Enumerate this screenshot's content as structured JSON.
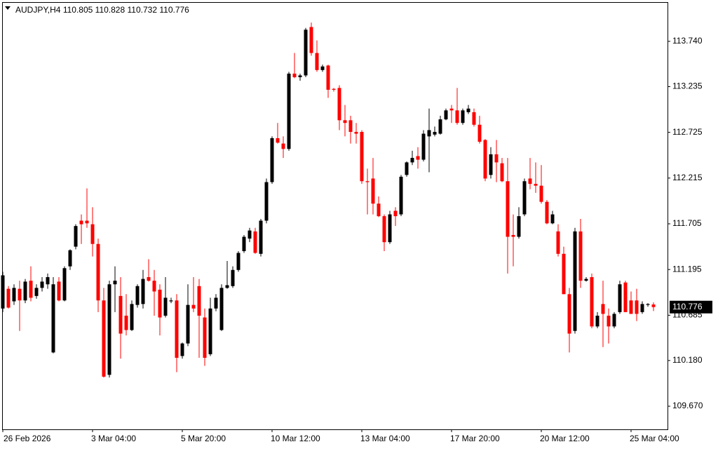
{
  "chart_data": {
    "type": "candlestick",
    "title": "AUDJPY,H4",
    "categories": [
      "26 Feb 2026",
      null,
      null,
      null,
      null,
      null,
      null,
      null,
      null,
      null,
      null,
      null,
      null,
      null,
      null,
      null,
      "3 Mar 04:00",
      null,
      null,
      null,
      null,
      null,
      null,
      null,
      null,
      null,
      null,
      null,
      null,
      null,
      null,
      null,
      "5 Mar 20:00",
      null,
      null,
      null,
      null,
      null,
      null,
      null,
      null,
      null,
      null,
      null,
      null,
      null,
      null,
      null,
      "10 Mar 12:00",
      null,
      null,
      null,
      null,
      null,
      null,
      null,
      null,
      null,
      null,
      null,
      null,
      null,
      null,
      null,
      "13 Mar 04:00",
      null,
      null,
      null,
      null,
      null,
      null,
      null,
      null,
      null,
      null,
      null,
      null,
      null,
      null,
      null,
      "17 Mar 20:00",
      null,
      null,
      null,
      null,
      null,
      null,
      null,
      null,
      null,
      null,
      null,
      null,
      null,
      null,
      null,
      "20 Mar 12:00",
      null,
      null,
      null,
      null,
      null,
      null,
      null,
      null,
      null,
      null,
      null,
      null,
      null,
      null,
      null,
      "25 Mar 04:00",
      null,
      null,
      null,
      null
    ],
    "open": [
      110.76,
      110.98,
      110.84,
      110.98,
      110.85,
      111.07,
      110.9,
      110.99,
      111.03,
      110.27,
      111.06,
      110.85,
      111.23,
      111.45,
      111.74,
      111.74,
      111.7,
      111.48,
      110.85,
      110.02,
      111.03,
      110.9,
      110.68,
      110.52,
      110.8,
      110.81,
      111.11,
      111.07,
      110.97,
      110.68,
      110.84,
      110.85,
      110.23,
      110.37,
      110.8,
      111.01,
      110.66,
      110.25,
      110.76,
      110.52,
      110.99,
      111.01,
      111.19,
      111.4,
      111.54,
      111.62,
      111.37,
      111.74,
      112.17,
      112.66,
      112.6,
      112.54,
      113.38,
      113.34,
      113.36,
      113.9,
      113.61,
      113.42,
      113.47,
      113.21,
      113.22,
      112.86,
      112.86,
      112.73,
      112.73,
      112.18,
      112.21,
      111.93,
      111.79,
      111.5,
      111.85,
      111.81,
      112.25,
      112.39,
      112.46,
      112.42,
      112.68,
      112.7,
      112.71,
      112.87,
      112.99,
      112.97,
      112.83,
      112.95,
      112.95,
      112.81,
      112.64,
      112.25,
      112.48,
      112.38,
      112.18,
      111.58,
      111.56,
      111.81,
      112.21,
      112.15,
      112.13,
      111.95,
      111.71,
      111.62,
      111.37,
      110.92,
      110.51,
      111.62,
      111.07,
      111.11,
      110.56,
      110.81,
      110.68,
      110.56,
      110.72,
      111.05,
      110.85,
      110.85,
      110.72,
      110.8,
      110.805
    ],
    "high": [
      111.17,
      111.01,
      111.03,
      111.07,
      111.09,
      111.23,
      111.03,
      111.11,
      111.15,
      111.11,
      111.11,
      111.23,
      111.42,
      111.7,
      111.81,
      112.1,
      111.89,
      111.54,
      110.99,
      111.07,
      111.23,
      111.11,
      110.92,
      110.85,
      111.03,
      111.19,
      111.31,
      111.19,
      111.03,
      111.11,
      110.88,
      110.92,
      110.38,
      111.03,
      111.11,
      111.09,
      110.76,
      110.88,
      110.92,
      111.03,
      111.29,
      111.23,
      111.4,
      111.58,
      111.66,
      111.66,
      111.76,
      112.21,
      112.68,
      112.83,
      112.68,
      113.4,
      113.61,
      113.38,
      113.89,
      113.95,
      113.75,
      113.48,
      113.48,
      113.22,
      113.25,
      113.03,
      112.91,
      112.83,
      112.75,
      112.32,
      112.44,
      112.01,
      111.81,
      111.85,
      111.89,
      112.25,
      112.4,
      112.52,
      112.56,
      112.75,
      112.99,
      112.79,
      112.91,
      112.99,
      113.03,
      113.22,
      112.99,
      113.03,
      112.99,
      112.91,
      112.65,
      112.56,
      112.64,
      112.44,
      112.44,
      111.81,
      111.89,
      112.21,
      112.44,
      112.39,
      112.36,
      111.97,
      111.85,
      111.7,
      111.45,
      110.99,
      111.66,
      111.76,
      111.11,
      111.15,
      110.72,
      111.07,
      110.76,
      110.72,
      111.07,
      111.07,
      110.95,
      110.98,
      110.84,
      110.82,
      110.828
    ],
    "low": [
      110.72,
      110.76,
      110.8,
      110.51,
      110.82,
      110.84,
      110.87,
      110.95,
      110.98,
      110.26,
      110.84,
      110.84,
      111.19,
      111.42,
      111.48,
      111.66,
      111.34,
      110.72,
      109.99,
      109.99,
      110.72,
      110.2,
      110.46,
      110.51,
      110.77,
      110.76,
      111.06,
      110.68,
      110.46,
      110.66,
      110.82,
      110.05,
      110.2,
      110.34,
      110.72,
      110.21,
      110.12,
      110.23,
      110.73,
      110.51,
      110.98,
      110.99,
      111.17,
      111.38,
      111.5,
      111.37,
      111.34,
      111.71,
      112.15,
      112.6,
      112.44,
      112.52,
      113.33,
      113.3,
      113.34,
      113.58,
      113.4,
      113.4,
      113.11,
      113.18,
      112.75,
      112.68,
      112.6,
      112.6,
      112.15,
      111.81,
      111.81,
      111.78,
      111.4,
      111.48,
      111.68,
      111.79,
      112.23,
      112.36,
      112.32,
      112.4,
      112.28,
      112.68,
      112.7,
      112.86,
      112.83,
      112.81,
      112.81,
      112.93,
      112.79,
      112.6,
      112.18,
      112.21,
      112.17,
      112.17,
      111.15,
      111.23,
      111.54,
      111.79,
      112.09,
      112.05,
      111.93,
      111.7,
      111.7,
      111.34,
      110.92,
      110.27,
      110.48,
      110.99,
      111.06,
      110.54,
      110.54,
      110.33,
      110.37,
      110.54,
      110.7,
      110.72,
      110.7,
      110.62,
      110.7,
      110.78,
      110.732
    ],
    "close": [
      111.13,
      110.77,
      110.99,
      110.85,
      111.06,
      110.88,
      110.99,
      111.06,
      111.11,
      111.03,
      110.85,
      111.21,
      111.41,
      111.68,
      111.7,
      111.71,
      111.48,
      110.85,
      110.0,
      111.03,
      111.07,
      110.48,
      110.52,
      110.81,
      111.01,
      111.09,
      111.07,
      110.95,
      110.66,
      110.88,
      110.85,
      110.21,
      110.37,
      110.8,
      110.76,
      110.68,
      110.21,
      110.76,
      110.88,
      110.99,
      111.02,
      111.19,
      111.38,
      111.56,
      111.63,
      111.38,
      111.74,
      112.17,
      112.66,
      112.61,
      112.54,
      113.38,
      113.34,
      113.36,
      113.87,
      113.61,
      113.42,
      113.46,
      113.2,
      113.2,
      112.86,
      112.83,
      112.73,
      112.71,
      112.18,
      112.17,
      111.93,
      111.79,
      111.5,
      111.81,
      111.79,
      112.23,
      112.39,
      112.44,
      112.42,
      112.71,
      112.75,
      112.73,
      112.87,
      112.97,
      112.97,
      112.83,
      112.97,
      112.99,
      112.81,
      112.62,
      112.21,
      112.48,
      112.39,
      112.18,
      111.56,
      111.56,
      111.79,
      112.18,
      112.15,
      112.13,
      111.95,
      111.71,
      111.81,
      111.37,
      110.92,
      110.48,
      111.62,
      111.07,
      111.09,
      110.56,
      110.68,
      110.7,
      110.56,
      110.7,
      111.03,
      110.72,
      110.7,
      110.7,
      110.81,
      110.81,
      110.776
    ],
    "up_color": "#000000",
    "down_color": "#ff0000",
    "ylim": [
      109.412,
      114.17
    ],
    "yticks": [
      {
        "value": 109.67,
        "label": "109.670"
      },
      {
        "value": 110.18,
        "label": "110.180"
      },
      110.685,
      111.195,
      111.705,
      112.215,
      112.725,
      113.235,
      {
        "value": 113.74,
        "label": "113.740"
      }
    ]
  }
}
